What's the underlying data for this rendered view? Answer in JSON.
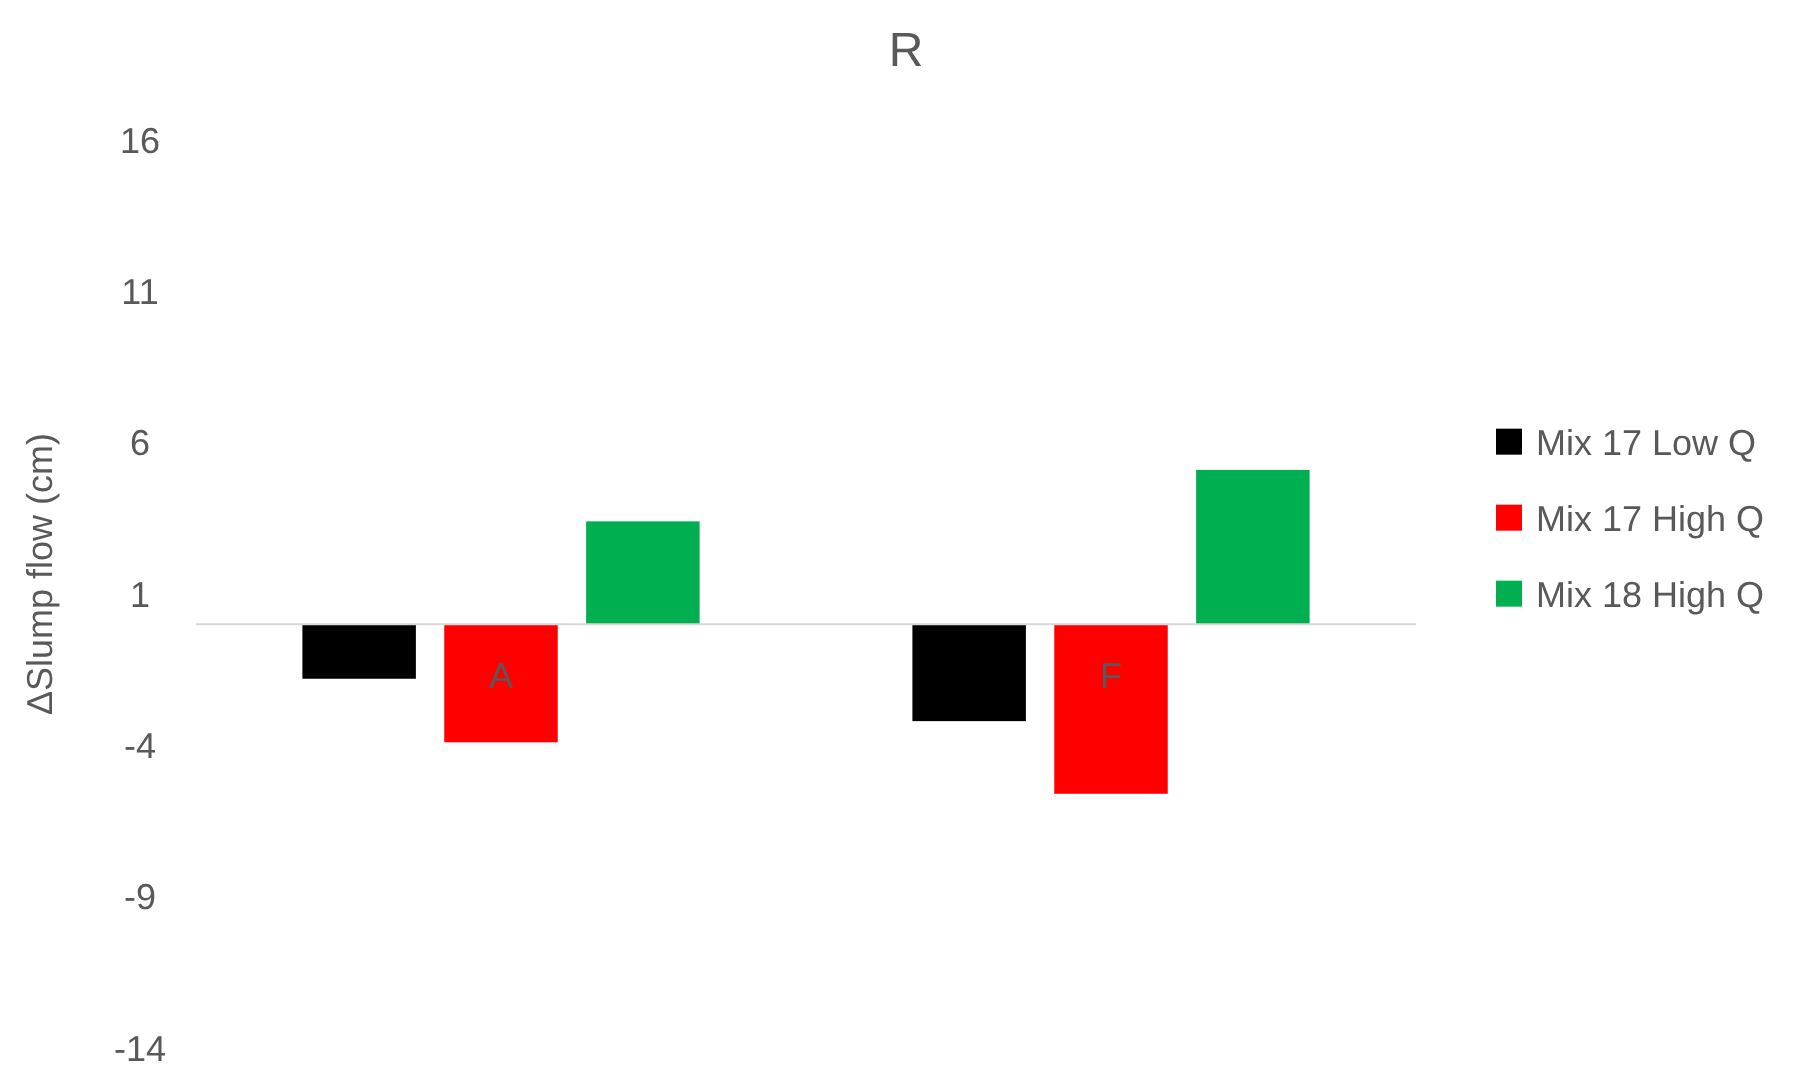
{
  "chart_data": {
    "type": "bar",
    "title": "R",
    "ylabel": "ΔSlump flow (cm)",
    "categories": [
      "A",
      "F"
    ],
    "series": [
      {
        "name": "Mix 17 Low Q",
        "color": "#000000",
        "values": [
          -1.8,
          -3.2
        ]
      },
      {
        "name": "Mix 17 High Q",
        "color": "#ff0000",
        "values": [
          -3.9,
          -5.6
        ]
      },
      {
        "name": "Mix 18 High Q",
        "color": "#00b050",
        "values": [
          3.4,
          5.1
        ]
      }
    ],
    "ylim": [
      -14,
      16
    ],
    "yticks": [
      -14,
      -9,
      -4,
      1,
      6,
      11,
      16
    ],
    "grid": false,
    "legend": "right"
  }
}
